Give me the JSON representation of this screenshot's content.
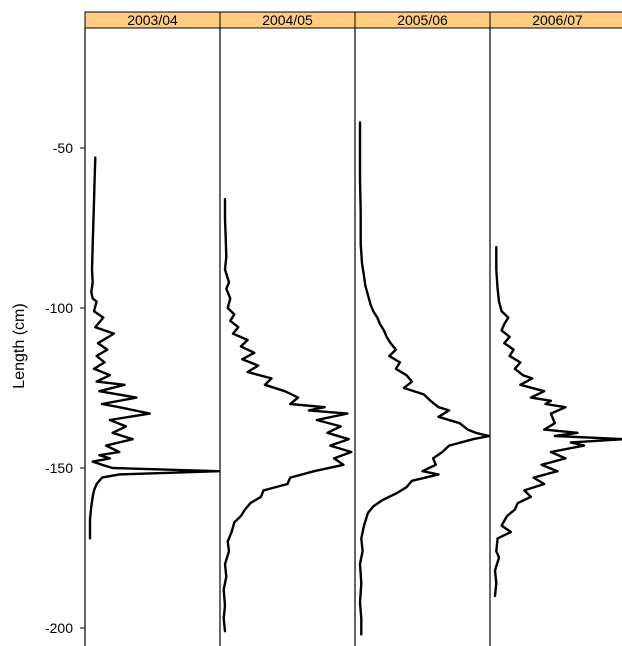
{
  "chart_data": {
    "type": "line",
    "ylabel": "Length (cm)",
    "ylim": [
      -203,
      -11
    ],
    "yticks": [
      -50,
      -100,
      -150,
      -200
    ],
    "ytick_labels": [
      "-50",
      "-100",
      "-150",
      "-200"
    ],
    "grid": false,
    "colors": {
      "strip": "#ffcc80",
      "line": "#000000"
    },
    "panels": [
      {
        "label": "2003/04",
        "points": [
          [
            0.07,
            -53
          ],
          [
            0.065,
            -60
          ],
          [
            0.058,
            -70
          ],
          [
            0.05,
            -80
          ],
          [
            0.045,
            -88
          ],
          [
            0.05,
            -92
          ],
          [
            0.04,
            -95
          ],
          [
            0.05,
            -97
          ],
          [
            0.08,
            -98
          ],
          [
            0.06,
            -101
          ],
          [
            0.13,
            -103
          ],
          [
            0.07,
            -106
          ],
          [
            0.21,
            -108
          ],
          [
            0.09,
            -111
          ],
          [
            0.16,
            -113
          ],
          [
            0.08,
            -115
          ],
          [
            0.14,
            -117
          ],
          [
            0.06,
            -119
          ],
          [
            0.18,
            -121
          ],
          [
            0.08,
            -123
          ],
          [
            0.29,
            -124
          ],
          [
            0.1,
            -126
          ],
          [
            0.38,
            -128
          ],
          [
            0.12,
            -130
          ],
          [
            0.25,
            -131
          ],
          [
            0.48,
            -133
          ],
          [
            0.18,
            -135
          ],
          [
            0.3,
            -137
          ],
          [
            0.2,
            -139
          ],
          [
            0.35,
            -141
          ],
          [
            0.15,
            -143
          ],
          [
            0.25,
            -145
          ],
          [
            0.1,
            -146
          ],
          [
            0.18,
            -147
          ],
          [
            0.05,
            -148
          ],
          [
            0.12,
            -149
          ],
          [
            0.2,
            -150
          ],
          [
            1.0,
            -151
          ],
          [
            0.25,
            -152
          ],
          [
            0.12,
            -153
          ],
          [
            0.08,
            -155
          ],
          [
            0.06,
            -157
          ],
          [
            0.05,
            -159
          ],
          [
            0.04,
            -162
          ],
          [
            0.03,
            -166
          ],
          [
            0.03,
            -172
          ]
        ]
      },
      {
        "label": "2004/05",
        "points": [
          [
            0.03,
            -66
          ],
          [
            0.03,
            -72
          ],
          [
            0.035,
            -78
          ],
          [
            0.04,
            -84
          ],
          [
            0.03,
            -88
          ],
          [
            0.06,
            -92
          ],
          [
            0.04,
            -94
          ],
          [
            0.07,
            -97
          ],
          [
            0.05,
            -100
          ],
          [
            0.1,
            -102
          ],
          [
            0.07,
            -104
          ],
          [
            0.13,
            -106
          ],
          [
            0.09,
            -108
          ],
          [
            0.2,
            -110
          ],
          [
            0.15,
            -112
          ],
          [
            0.25,
            -114
          ],
          [
            0.16,
            -116
          ],
          [
            0.28,
            -118
          ],
          [
            0.2,
            -120
          ],
          [
            0.38,
            -122
          ],
          [
            0.33,
            -124
          ],
          [
            0.48,
            -126
          ],
          [
            0.58,
            -128
          ],
          [
            0.52,
            -130
          ],
          [
            0.78,
            -131
          ],
          [
            0.66,
            -132
          ],
          [
            0.95,
            -133
          ],
          [
            0.72,
            -135
          ],
          [
            0.9,
            -137
          ],
          [
            0.8,
            -139
          ],
          [
            0.96,
            -141
          ],
          [
            0.82,
            -143
          ],
          [
            0.98,
            -145
          ],
          [
            0.85,
            -147
          ],
          [
            0.92,
            -149
          ],
          [
            0.7,
            -151
          ],
          [
            0.52,
            -153
          ],
          [
            0.5,
            -155
          ],
          [
            0.32,
            -157
          ],
          [
            0.3,
            -159
          ],
          [
            0.22,
            -161
          ],
          [
            0.18,
            -163
          ],
          [
            0.15,
            -165
          ],
          [
            0.1,
            -167
          ],
          [
            0.08,
            -170
          ],
          [
            0.05,
            -173
          ],
          [
            0.06,
            -176
          ],
          [
            0.03,
            -180
          ],
          [
            0.04,
            -184
          ],
          [
            0.02,
            -188
          ],
          [
            0.03,
            -193
          ],
          [
            0.02,
            -197
          ],
          [
            0.03,
            -201
          ]
        ]
      },
      {
        "label": "2005/06",
        "points": [
          [
            0.03,
            -42
          ],
          [
            0.03,
            -50
          ],
          [
            0.03,
            -60
          ],
          [
            0.035,
            -70
          ],
          [
            0.035,
            -80
          ],
          [
            0.045,
            -86
          ],
          [
            0.06,
            -90
          ],
          [
            0.07,
            -93
          ],
          [
            0.09,
            -96
          ],
          [
            0.11,
            -99
          ],
          [
            0.13,
            -101
          ],
          [
            0.16,
            -103
          ],
          [
            0.18,
            -105
          ],
          [
            0.21,
            -107
          ],
          [
            0.23,
            -109
          ],
          [
            0.26,
            -111
          ],
          [
            0.3,
            -113
          ],
          [
            0.25,
            -115
          ],
          [
            0.33,
            -117
          ],
          [
            0.3,
            -119
          ],
          [
            0.38,
            -121
          ],
          [
            0.42,
            -123
          ],
          [
            0.36,
            -125
          ],
          [
            0.51,
            -127
          ],
          [
            0.56,
            -129
          ],
          [
            0.62,
            -131
          ],
          [
            0.7,
            -132
          ],
          [
            0.62,
            -134
          ],
          [
            0.78,
            -136
          ],
          [
            0.84,
            -138
          ],
          [
            0.9,
            -139
          ],
          [
            1.0,
            -140
          ],
          [
            0.88,
            -141
          ],
          [
            0.7,
            -143
          ],
          [
            0.65,
            -145
          ],
          [
            0.58,
            -147
          ],
          [
            0.6,
            -149
          ],
          [
            0.5,
            -151
          ],
          [
            0.62,
            -152
          ],
          [
            0.42,
            -154
          ],
          [
            0.38,
            -156
          ],
          [
            0.3,
            -158
          ],
          [
            0.2,
            -160
          ],
          [
            0.13,
            -162
          ],
          [
            0.09,
            -164
          ],
          [
            0.06,
            -168
          ],
          [
            0.04,
            -172
          ],
          [
            0.05,
            -176
          ],
          [
            0.03,
            -180
          ],
          [
            0.04,
            -186
          ],
          [
            0.03,
            -192
          ],
          [
            0.04,
            -197
          ],
          [
            0.04,
            -202
          ]
        ]
      },
      {
        "label": "2006/07",
        "points": [
          [
            0.04,
            -81
          ],
          [
            0.04,
            -88
          ],
          [
            0.05,
            -94
          ],
          [
            0.06,
            -98
          ],
          [
            0.08,
            -101
          ],
          [
            0.13,
            -103
          ],
          [
            0.1,
            -105
          ],
          [
            0.08,
            -107
          ],
          [
            0.14,
            -109
          ],
          [
            0.1,
            -111
          ],
          [
            0.17,
            -113
          ],
          [
            0.14,
            -115
          ],
          [
            0.22,
            -117
          ],
          [
            0.18,
            -119
          ],
          [
            0.24,
            -121
          ],
          [
            0.31,
            -122
          ],
          [
            0.22,
            -124
          ],
          [
            0.4,
            -126
          ],
          [
            0.3,
            -128
          ],
          [
            0.45,
            -129
          ],
          [
            0.41,
            -130
          ],
          [
            0.56,
            -131
          ],
          [
            0.45,
            -133
          ],
          [
            0.48,
            -136
          ],
          [
            0.4,
            -138
          ],
          [
            0.65,
            -139
          ],
          [
            0.48,
            -140
          ],
          [
            1.0,
            -141
          ],
          [
            0.6,
            -142
          ],
          [
            0.7,
            -143
          ],
          [
            0.45,
            -145
          ],
          [
            0.56,
            -147
          ],
          [
            0.38,
            -149
          ],
          [
            0.5,
            -151
          ],
          [
            0.32,
            -153
          ],
          [
            0.4,
            -155
          ],
          [
            0.25,
            -157
          ],
          [
            0.3,
            -159
          ],
          [
            0.2,
            -161
          ],
          [
            0.18,
            -163
          ],
          [
            0.12,
            -165
          ],
          [
            0.08,
            -168
          ],
          [
            0.15,
            -170
          ],
          [
            0.05,
            -172
          ],
          [
            0.04,
            -176
          ],
          [
            0.06,
            -178
          ],
          [
            0.03,
            -182
          ],
          [
            0.04,
            -186
          ],
          [
            0.03,
            -190
          ]
        ]
      }
    ]
  }
}
